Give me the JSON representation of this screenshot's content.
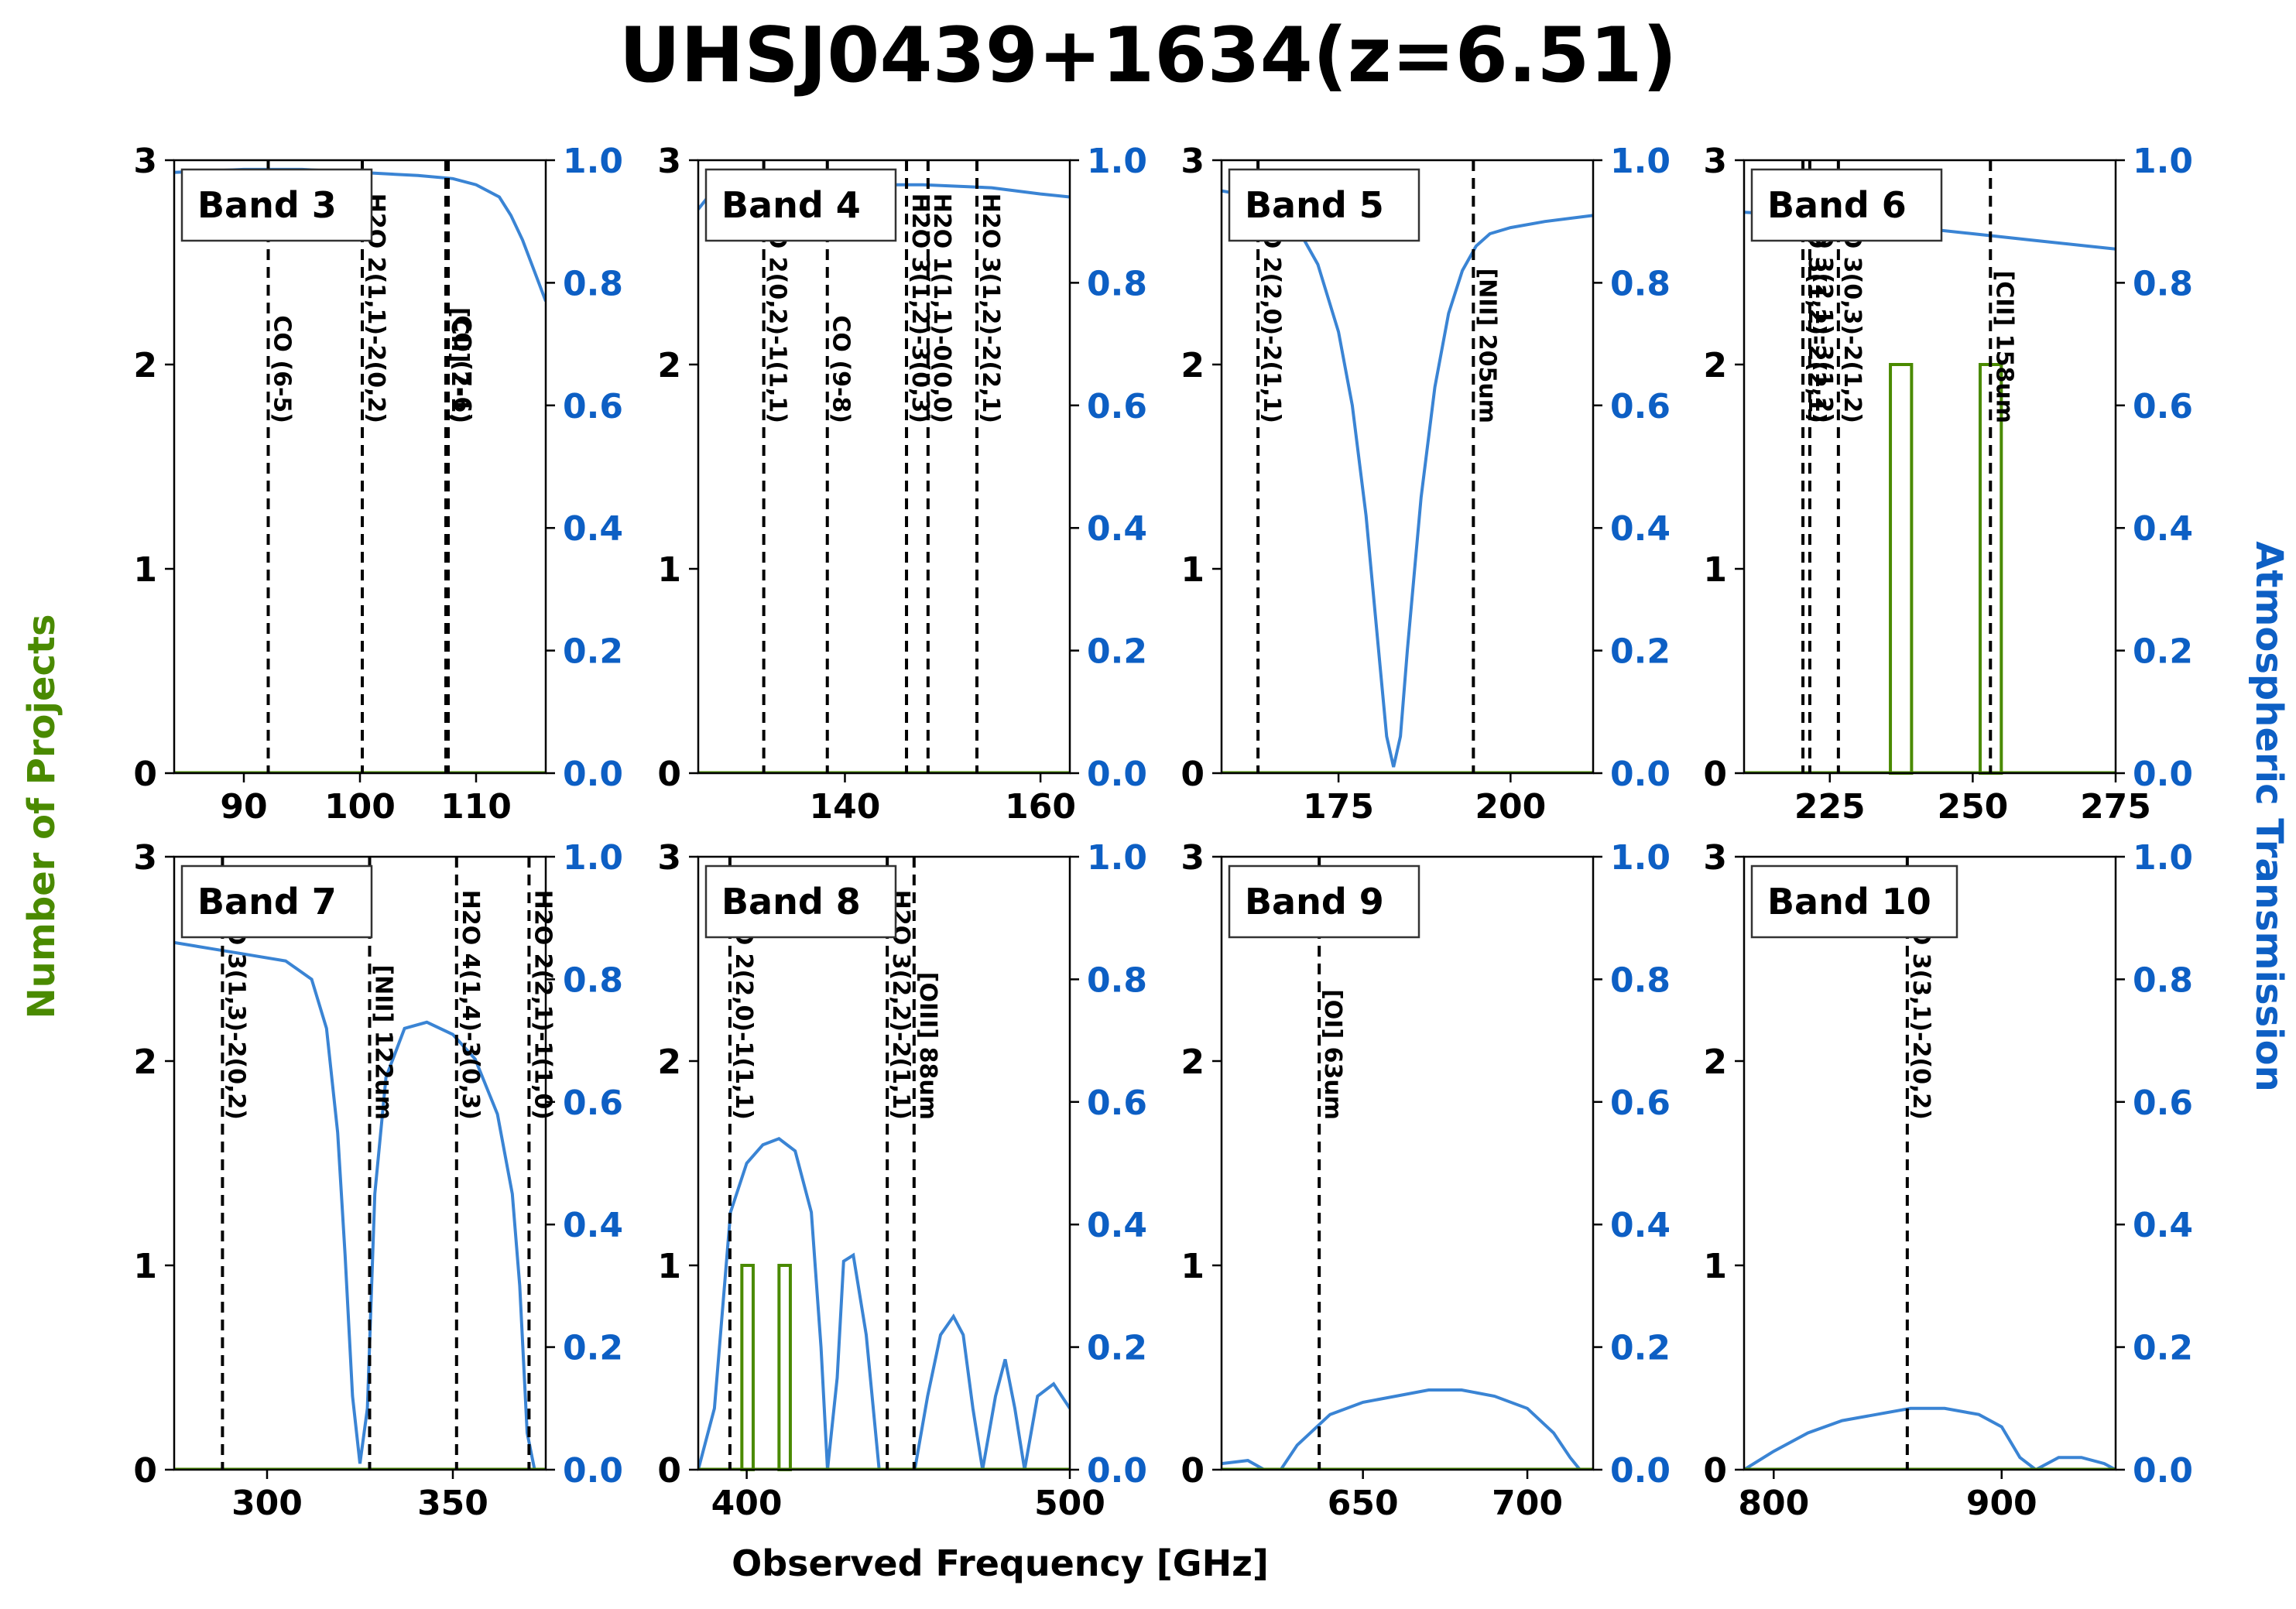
{
  "chart_data": {
    "title": "UHSJ0439+1634(z=6.51)",
    "xlabel": "Observed Frequency [GHz]",
    "ylabel_left": "Number of Projects",
    "ylabel_right": "Atmospheric Transmission",
    "colors": {
      "projects": "#4a8a00",
      "transmission": "#3a84d4",
      "right_axis": "#0d5fc4",
      "lines": "#000000"
    },
    "left_ylim": [
      0,
      3
    ],
    "left_yticks": [
      "0",
      "1",
      "2",
      "3"
    ],
    "right_ylim": [
      0,
      1
    ],
    "right_yticks": [
      "0.0",
      "0.2",
      "0.4",
      "0.6",
      "0.8",
      "1.0"
    ],
    "panels": [
      {
        "band": "Band 3",
        "xlim": [
          84,
          116
        ],
        "xticks": [
          90,
          100,
          110
        ],
        "lines": [
          {
            "freq": 92.1,
            "label": "CO (6-5)"
          },
          {
            "freq": 100.2,
            "label": "H2O 2(1,1)-2(0,2)"
          },
          {
            "freq": 107.4,
            "label": "[CII] 2-1)"
          },
          {
            "freq": 107.6,
            "label": "CO (7-6)"
          }
        ],
        "projects": [],
        "transmission": {
          "x": [
            84,
            90,
            95,
            100,
            105,
            108,
            110,
            112,
            113,
            114,
            115,
            116
          ],
          "y": [
            0.98,
            0.985,
            0.985,
            0.98,
            0.975,
            0.97,
            0.96,
            0.94,
            0.91,
            0.87,
            0.82,
            0.77
          ]
        }
      },
      {
        "band": "Band 4",
        "xlim": [
          125,
          163
        ],
        "xticks": [
          140,
          160
        ],
        "lines": [
          {
            "freq": 131.7,
            "label": "H2O 2(0,2)-1(1,1)"
          },
          {
            "freq": 138.2,
            "label": "CO (9-8)"
          },
          {
            "freq": 146.3,
            "label": "H2O 3(1,2)-3(0,3)"
          },
          {
            "freq": 148.5,
            "label": "H2O 1(1,1)-0(0,0)"
          },
          {
            "freq": 153.5,
            "label": "H2O 3(1,2)-2(2,1)"
          }
        ],
        "projects": [],
        "transmission": {
          "x": [
            125,
            126,
            128,
            132,
            140,
            148,
            155,
            160,
            163
          ],
          "y": [
            0.92,
            0.94,
            0.95,
            0.955,
            0.96,
            0.96,
            0.955,
            0.945,
            0.94
          ]
        }
      },
      {
        "band": "Band 5",
        "xlim": [
          158,
          212
        ],
        "xticks": [
          175,
          200
        ],
        "lines": [
          {
            "freq": 163.3,
            "label": "H2O 2(2,0)-2(1,1)"
          },
          {
            "freq": 194.6,
            "label": "[NII] 205um"
          }
        ],
        "projects": [],
        "transmission": {
          "x": [
            158,
            163,
            166,
            169,
            172,
            175,
            177,
            179,
            181,
            182,
            183,
            184,
            185,
            187,
            189,
            191,
            193,
            195,
            197,
            200,
            205,
            212
          ],
          "y": [
            0.95,
            0.94,
            0.92,
            0.89,
            0.83,
            0.72,
            0.6,
            0.42,
            0.18,
            0.06,
            0.01,
            0.06,
            0.2,
            0.45,
            0.63,
            0.75,
            0.82,
            0.86,
            0.88,
            0.89,
            0.9,
            0.91
          ]
        }
      },
      {
        "band": "Band 6",
        "xlim": [
          210,
          275
        ],
        "xticks": [
          225,
          250,
          275
        ],
        "lines": [
          {
            "freq": 220.3,
            "label": "H2O 3(1,2)-2(2,1)"
          },
          {
            "freq": 221.5,
            "label": "H2O 3(2,1)-3(1,2)"
          },
          {
            "freq": 226.5,
            "label": "H2O 3(0,3)-2(1,2)"
          },
          {
            "freq": 253.1,
            "label": "[CII] 158um"
          }
        ],
        "projects": [
          {
            "x0": 235.6,
            "x1": 239.3,
            "count": 2
          },
          {
            "x0": 251.3,
            "x1": 255.0,
            "count": 2
          }
        ],
        "transmission": {
          "x": [
            210,
            220,
            230,
            240,
            250,
            260,
            270,
            275
          ],
          "y": [
            0.915,
            0.91,
            0.9,
            0.89,
            0.88,
            0.87,
            0.86,
            0.855
          ]
        }
      },
      {
        "band": "Band 7",
        "xlim": [
          275,
          375
        ],
        "xticks": [
          300,
          350
        ],
        "lines": [
          {
            "freq": 288.0,
            "label": "H2O 3(1,3)-2(0,2)"
          },
          {
            "freq": 327.6,
            "label": "[NII] 122um"
          },
          {
            "freq": 351.0,
            "label": "H2O 4(1,4)-3(0,3)"
          },
          {
            "freq": 370.5,
            "label": "H2O 2(2,1)-1(1,0)"
          }
        ],
        "projects": [],
        "transmission": {
          "x": [
            275,
            285,
            295,
            305,
            312,
            316,
            319,
            321,
            323,
            325,
            327,
            329,
            332,
            337,
            343,
            350,
            356,
            362,
            366,
            368,
            370,
            372,
            375
          ],
          "y": [
            0.86,
            0.85,
            0.84,
            0.83,
            0.8,
            0.72,
            0.55,
            0.35,
            0.12,
            0.01,
            0.1,
            0.45,
            0.64,
            0.72,
            0.73,
            0.71,
            0.67,
            0.58,
            0.45,
            0.3,
            0.06,
            0.0,
            0.0
          ]
        }
      },
      {
        "band": "Band 8",
        "xlim": [
          385,
          500
        ],
        "xticks": [
          400,
          500
        ],
        "lines": [
          {
            "freq": 394.8,
            "label": "H2O 2(2,0)-1(1,1)"
          },
          {
            "freq": 443.5,
            "label": "H2O 3(2,2)-2(1,1)"
          },
          {
            "freq": 451.8,
            "label": "[OIII] 88um"
          }
        ],
        "projects": [
          {
            "x0": 398.5,
            "x1": 402.0,
            "count": 1
          },
          {
            "x0": 410.0,
            "x1": 413.5,
            "count": 1
          }
        ],
        "transmission": {
          "x": [
            385,
            390,
            395,
            400,
            405,
            410,
            415,
            420,
            423,
            425,
            428,
            430,
            433,
            437,
            441,
            444,
            448,
            452,
            456,
            460,
            464,
            467,
            470,
            473,
            477,
            480,
            483,
            486,
            490,
            495,
            500
          ],
          "y": [
            0.0,
            0.1,
            0.42,
            0.5,
            0.53,
            0.54,
            0.52,
            0.42,
            0.2,
            0.0,
            0.15,
            0.34,
            0.35,
            0.22,
            0.0,
            0.0,
            0.0,
            0.0,
            0.12,
            0.22,
            0.25,
            0.22,
            0.1,
            0.0,
            0.12,
            0.18,
            0.1,
            0.0,
            0.12,
            0.14,
            0.1
          ]
        }
      },
      {
        "band": "Band 9",
        "xlim": [
          607,
          720
        ],
        "xticks": [
          650,
          700
        ],
        "lines": [
          {
            "freq": 636.7,
            "label": "[OI] 63um"
          }
        ],
        "projects": [],
        "transmission": {
          "x": [
            607,
            615,
            620,
            625,
            630,
            640,
            650,
            660,
            670,
            680,
            690,
            700,
            708,
            713,
            716,
            720
          ],
          "y": [
            0.01,
            0.015,
            0.0,
            0.0,
            0.04,
            0.09,
            0.11,
            0.12,
            0.13,
            0.13,
            0.12,
            0.1,
            0.06,
            0.02,
            0.0,
            0.0
          ]
        }
      },
      {
        "band": "Band 10",
        "xlim": [
          787,
          950
        ],
        "xticks": [
          800,
          900
        ],
        "lines": [
          {
            "freq": 858.6,
            "label": "H2O 3(3,1)-2(0,2)"
          }
        ],
        "projects": [],
        "transmission": {
          "x": [
            787,
            800,
            815,
            830,
            845,
            860,
            875,
            890,
            900,
            908,
            915,
            925,
            935,
            945,
            950
          ],
          "y": [
            0.0,
            0.03,
            0.06,
            0.08,
            0.09,
            0.1,
            0.1,
            0.09,
            0.07,
            0.02,
            0.0,
            0.02,
            0.02,
            0.01,
            0.0
          ]
        }
      }
    ]
  }
}
